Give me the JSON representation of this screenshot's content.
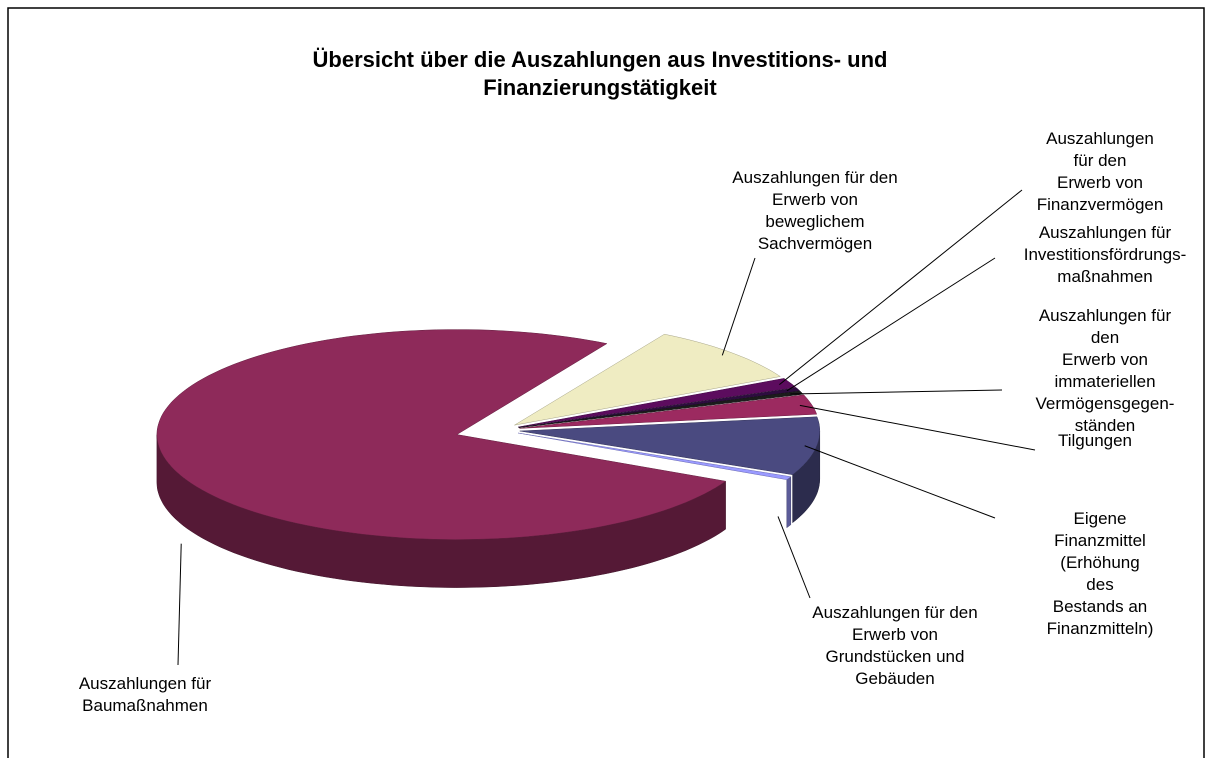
{
  "chart_data": {
    "type": "pie3d",
    "title": "Übersicht über die Auszahlungen aus Investitions- und\nFinanzierungstätigkeit",
    "categories": [
      "Auszahlungen für den\nErwerb von\nbeweglichem\nSachvermögen",
      "Auszahlungen für den\nErwerb von\nFinanzvermögen",
      "Auszahlungen für\nInvestitionsfördrungs-\nmaßnahmen",
      "Auszahlungen für den\nErwerb von\nimmateriellen\nVermögensgegen-\nständen",
      "Tilgungen",
      "Eigene Finanzmittel\n(Erhöhung des\nBestands an\nFinanzmitteln)",
      "Auszahlungen für den\nErwerb von\nGrundstücken und\nGebäuden",
      "Auszahlungen für\nBaumaßnahmen"
    ],
    "values": [
      9,
      1.5,
      0.5,
      0.5,
      3,
      9,
      0.5,
      76
    ],
    "colors": [
      "#efecc2",
      "#5c0c5e",
      "#2e0c40",
      "#1c1c1c",
      "#9c2a60",
      "#4a4a80",
      "#9a9aff",
      "#8e2a5a"
    ]
  }
}
